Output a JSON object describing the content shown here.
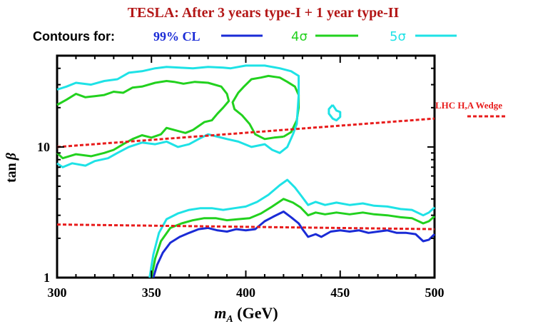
{
  "chart_data": {
    "type": "line",
    "title": "TESLA: After 3 years type-I + 1 year type-II",
    "legend_prefix": "Contours for:",
    "xlabel_main": "m",
    "xlabel_sub": "A",
    "xlabel_unit": " (GeV)",
    "ylabel_main": "tan",
    "ylabel_greek": "β",
    "xlim": [
      300,
      500
    ],
    "ylim": [
      1,
      50
    ],
    "y_scale": "log",
    "grid": false,
    "legend_position": "top",
    "x_ticks": [
      300,
      350,
      400,
      450,
      500
    ],
    "x_tick_labels": [
      "300",
      "350",
      "400",
      "450",
      "500"
    ],
    "y_ticks": [
      1,
      10
    ],
    "y_tick_labels": [
      "1",
      "10"
    ],
    "series": [
      {
        "name": "99% CL",
        "color": "#1a2bd6",
        "legend_label_color": "#1a2bd6",
        "paths": [
          [
            [
              351,
              1.0
            ],
            [
              353,
              1.25
            ],
            [
              356,
              1.55
            ],
            [
              360,
              1.85
            ],
            [
              365,
              2.05
            ],
            [
              370,
              2.2
            ],
            [
              375,
              2.35
            ],
            [
              380,
              2.4
            ],
            [
              385,
              2.3
            ],
            [
              390,
              2.25
            ],
            [
              395,
              2.35
            ],
            [
              400,
              2.3
            ],
            [
              405,
              2.35
            ],
            [
              410,
              2.7
            ],
            [
              415,
              2.95
            ],
            [
              420,
              3.2
            ],
            [
              424,
              2.9
            ],
            [
              428,
              2.6
            ],
            [
              430,
              2.35
            ],
            [
              433,
              2.05
            ],
            [
              437,
              2.15
            ],
            [
              440,
              2.05
            ],
            [
              445,
              2.25
            ],
            [
              450,
              2.3
            ],
            [
              455,
              2.25
            ],
            [
              460,
              2.3
            ],
            [
              465,
              2.2
            ],
            [
              470,
              2.25
            ],
            [
              475,
              2.3
            ],
            [
              480,
              2.2
            ],
            [
              485,
              2.2
            ],
            [
              490,
              2.15
            ],
            [
              494,
              1.9
            ],
            [
              497,
              1.95
            ],
            [
              500,
              2.15
            ]
          ]
        ]
      },
      {
        "name": "4σ",
        "color": "#22d11e",
        "legend_label_color": "#22d11e",
        "paths": [
          [
            [
              350,
              1.0
            ],
            [
              352,
              1.4
            ],
            [
              355,
              1.9
            ],
            [
              360,
              2.4
            ],
            [
              366,
              2.6
            ],
            [
              372,
              2.75
            ],
            [
              378,
              2.85
            ],
            [
              384,
              2.85
            ],
            [
              390,
              2.75
            ],
            [
              396,
              2.8
            ],
            [
              402,
              2.85
            ],
            [
              408,
              3.1
            ],
            [
              414,
              3.5
            ],
            [
              420,
              4.0
            ],
            [
              425,
              3.75
            ],
            [
              429,
              3.45
            ],
            [
              433,
              3.0
            ],
            [
              437,
              3.15
            ],
            [
              442,
              3.05
            ],
            [
              448,
              3.15
            ],
            [
              455,
              3.05
            ],
            [
              462,
              3.15
            ],
            [
              468,
              3.05
            ],
            [
              475,
              3.0
            ],
            [
              482,
              2.9
            ],
            [
              488,
              2.85
            ],
            [
              494,
              2.6
            ],
            [
              497,
              2.7
            ],
            [
              500,
              2.95
            ]
          ],
          [
            [
              300,
              9.0
            ],
            [
              303,
              8.2
            ],
            [
              310,
              8.8
            ],
            [
              318,
              8.5
            ],
            [
              325,
              9.0
            ],
            [
              330,
              9.5
            ],
            [
              335,
              10.5
            ],
            [
              340,
              11.5
            ],
            [
              345,
              12.3
            ],
            [
              350,
              11.8
            ],
            [
              355,
              12.5
            ],
            [
              358,
              14.0
            ],
            [
              362,
              13.5
            ],
            [
              368,
              12.8
            ],
            [
              372,
              13.5
            ],
            [
              378,
              15.5
            ],
            [
              382,
              16.0
            ],
            [
              385,
              18.0
            ],
            [
              388,
              20.0
            ],
            [
              391,
              22.5
            ],
            [
              390,
              25.5
            ],
            [
              387,
              29.0
            ],
            [
              380,
              31.0
            ],
            [
              373,
              31.5
            ],
            [
              367,
              30.5
            ],
            [
              362,
              31.5
            ],
            [
              358,
              32.0
            ],
            [
              352,
              31.0
            ],
            [
              345,
              29.0
            ],
            [
              340,
              28.5
            ],
            [
              335,
              26.0
            ],
            [
              330,
              26.5
            ],
            [
              325,
              25.0
            ],
            [
              320,
              24.5
            ],
            [
              315,
              24.0
            ],
            [
              310,
              25.5
            ],
            [
              305,
              23.0
            ],
            [
              300,
              21.0
            ]
          ],
          [
            [
              420,
              12.0
            ],
            [
              424,
              13.0
            ],
            [
              427,
              16.0
            ],
            [
              428,
              20.0
            ],
            [
              428,
              25.0
            ],
            [
              426,
              29.0
            ],
            [
              422,
              31.5
            ],
            [
              418,
              34.0
            ],
            [
              412,
              35.0
            ],
            [
              408,
              34.0
            ],
            [
              403,
              33.0
            ],
            [
              399,
              29.0
            ],
            [
              396,
              26.0
            ],
            [
              393,
              22.0
            ],
            [
              394,
              19.5
            ],
            [
              398,
              17.5
            ],
            [
              402,
              15.0
            ],
            [
              405,
              12.5
            ],
            [
              410,
              11.5
            ],
            [
              415,
              11.8
            ],
            [
              420,
              12.0
            ]
          ]
        ]
      },
      {
        "name": "5σ",
        "color": "#1ee2e6",
        "legend_label_color": "#1ee2e6",
        "paths": [
          [
            [
              349,
              1.0
            ],
            [
              351,
              1.5
            ],
            [
              354,
              2.2
            ],
            [
              358,
              2.8
            ],
            [
              364,
              3.1
            ],
            [
              370,
              3.3
            ],
            [
              376,
              3.4
            ],
            [
              382,
              3.4
            ],
            [
              388,
              3.3
            ],
            [
              394,
              3.4
            ],
            [
              400,
              3.5
            ],
            [
              406,
              3.8
            ],
            [
              412,
              4.3
            ],
            [
              418,
              5.1
            ],
            [
              422,
              5.6
            ],
            [
              426,
              4.9
            ],
            [
              429,
              4.3
            ],
            [
              433,
              3.6
            ],
            [
              437,
              3.8
            ],
            [
              442,
              3.6
            ],
            [
              448,
              3.75
            ],
            [
              455,
              3.6
            ],
            [
              462,
              3.7
            ],
            [
              468,
              3.55
            ],
            [
              475,
              3.5
            ],
            [
              482,
              3.35
            ],
            [
              488,
              3.3
            ],
            [
              494,
              3.0
            ],
            [
              497,
              3.15
            ],
            [
              500,
              3.45
            ]
          ],
          [
            [
              300,
              7.5
            ],
            [
              303,
              7.0
            ],
            [
              308,
              7.5
            ],
            [
              315,
              7.2
            ],
            [
              320,
              7.8
            ],
            [
              327,
              8.2
            ],
            [
              332,
              9.0
            ],
            [
              338,
              10.0
            ],
            [
              345,
              10.8
            ],
            [
              352,
              10.5
            ],
            [
              358,
              11.0
            ],
            [
              364,
              10.0
            ],
            [
              370,
              10.5
            ],
            [
              375,
              11.5
            ],
            [
              380,
              12.5
            ],
            [
              385,
              12.0
            ],
            [
              390,
              11.5
            ],
            [
              396,
              11.0
            ],
            [
              403,
              10.0
            ],
            [
              410,
              10.5
            ],
            [
              414,
              9.5
            ],
            [
              418,
              9.0
            ],
            [
              422,
              10.0
            ],
            [
              425,
              12.5
            ],
            [
              427,
              15.0
            ],
            [
              428,
              25.0
            ],
            [
              428,
              35.0
            ],
            [
              424,
              38.0
            ],
            [
              418,
              40.0
            ],
            [
              410,
              42.0
            ],
            [
              400,
              42.0
            ],
            [
              392,
              40.0
            ],
            [
              388,
              40.5
            ],
            [
              380,
              41.0
            ],
            [
              372,
              40.0
            ],
            [
              365,
              40.5
            ],
            [
              358,
              41.0
            ],
            [
              352,
              40.0
            ],
            [
              345,
              38.0
            ],
            [
              338,
              37.0
            ],
            [
              332,
              33.0
            ],
            [
              325,
              32.0
            ],
            [
              318,
              30.0
            ],
            [
              310,
              31.0
            ],
            [
              305,
              29.0
            ],
            [
              300,
              27.5
            ]
          ],
          [
            [
              446,
              21.0
            ],
            [
              444,
              19.5
            ],
            [
              444,
              18.0
            ],
            [
              446,
              16.5
            ],
            [
              448,
              16.0
            ],
            [
              450,
              17.0
            ],
            [
              450,
              18.5
            ],
            [
              448,
              19.0
            ],
            [
              447,
              20.0
            ],
            [
              446,
              21.0
            ]
          ]
        ]
      }
    ],
    "reference_lines": [
      {
        "name": "LHC H,A Wedge",
        "color": "#e81c1c",
        "style": "dashed",
        "points": [
          [
            300,
            10.0
          ],
          [
            500,
            16.5
          ]
        ]
      },
      {
        "name": "",
        "color": "#e81c1c",
        "style": "dashed",
        "points": [
          [
            300,
            2.55
          ],
          [
            500,
            2.35
          ]
        ]
      }
    ],
    "annotations": [
      {
        "text": "LHC H,A Wedge",
        "color": "#e81c1c"
      }
    ],
    "colors": {
      "title": "#b31616",
      "legend_prefix": "#000000",
      "axis": "#000000",
      "annotation": "#e81c1c"
    }
  }
}
